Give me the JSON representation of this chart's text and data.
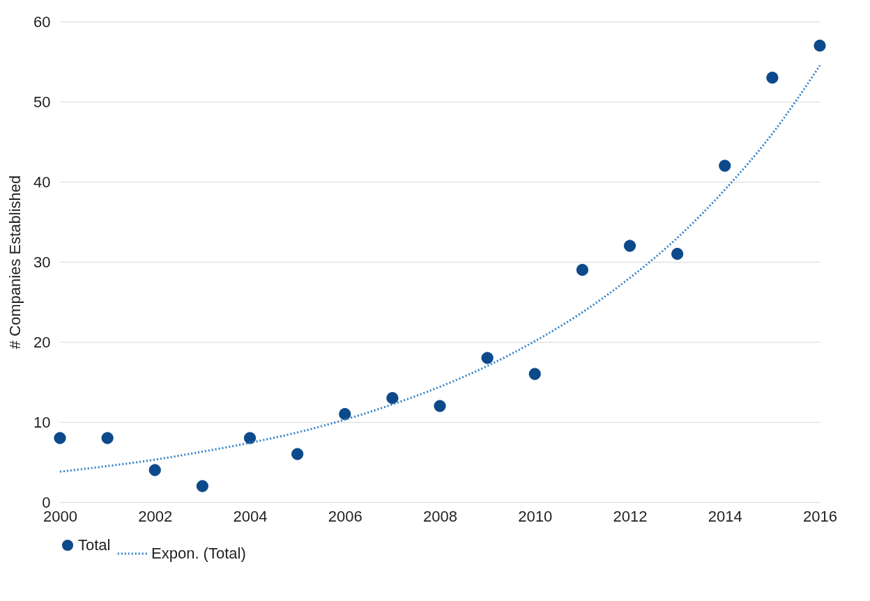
{
  "chart_data": {
    "type": "scatter",
    "ylabel": "# Companies Established",
    "x": [
      2000,
      2001,
      2002,
      2003,
      2004,
      2005,
      2006,
      2007,
      2008,
      2009,
      2010,
      2011,
      2012,
      2013,
      2014,
      2015,
      2016
    ],
    "series": [
      {
        "name": "Total",
        "marker": "circle",
        "color": "#0d4a8c",
        "values": [
          8,
          8,
          4,
          2,
          8,
          6,
          11,
          13,
          12,
          18,
          16,
          29,
          32,
          31,
          42,
          53,
          57
        ]
      },
      {
        "name": "Expon. (Total)",
        "type": "line",
        "color": "#2f7fc8",
        "line_style": "dotted",
        "values": [
          3.8,
          4.5,
          5.3,
          6.3,
          7.4,
          8.7,
          10.3,
          12.2,
          14.4,
          17.0,
          20.1,
          23.7,
          28,
          33,
          39,
          46,
          54.5
        ]
      }
    ],
    "xlim": [
      2000,
      2016
    ],
    "xticks": [
      2000,
      2002,
      2004,
      2006,
      2008,
      2010,
      2012,
      2014,
      2016
    ],
    "ylim": [
      0,
      60
    ],
    "yticks": [
      0,
      10,
      20,
      30,
      40,
      50,
      60
    ],
    "grid": "y",
    "legend": "bottom left"
  }
}
